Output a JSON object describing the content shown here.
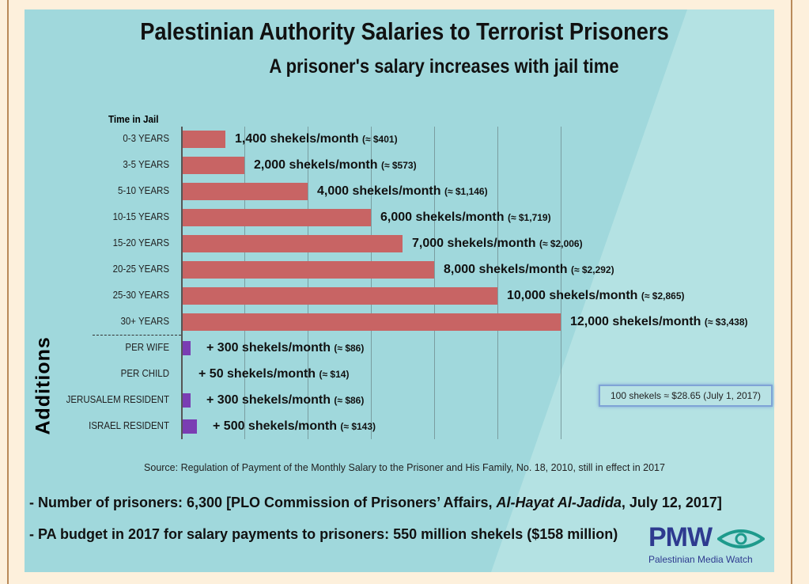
{
  "chart_data": {
    "type": "bar",
    "title": "Palestinian Authority Salaries to Terrorist Prisoners",
    "subtitle": "A prisoner's salary increases with jail time",
    "ylabel": "Time in Jail",
    "additions_label": "Additions",
    "xlim": [
      0,
      12000
    ],
    "grid_step": 2000,
    "categories": [
      "0-3 YEARS",
      "3-5 YEARS",
      "5-10 YEARS",
      "10-15 YEARS",
      "15-20 YEARS",
      "20-25 YEARS",
      "25-30 YEARS",
      "30+ YEARS",
      "PER WIFE",
      "PER CHILD",
      "JERUSALEM RESIDENT",
      "ISRAEL RESIDENT"
    ],
    "values": [
      1400,
      2000,
      4000,
      6000,
      7000,
      8000,
      10000,
      12000,
      300,
      50,
      300,
      500
    ],
    "labels": [
      "1,400 shekels/month",
      "2,000 shekels/month",
      "4,000 shekels/month",
      "6,000 shekels/month",
      "7,000 shekels/month",
      "8,000 shekels/month",
      "10,000 shekels/month",
      "12,000 shekels/month",
      "+ 300 shekels/month",
      "+ 50 shekels/month",
      "+ 300 shekels/month",
      "+ 500 shekels/month"
    ],
    "usd": [
      "(≈ $401)",
      "(≈ $573)",
      "(≈ $1,146)",
      "(≈ $1,719)",
      "(≈ $2,006)",
      "(≈ $2,292)",
      "(≈ $2,865)",
      "(≈ $3,438)",
      "(≈ $86)",
      "(≈ $14)",
      "(≈ $86)",
      "(≈ $143)"
    ],
    "colors": {
      "salary": "#c86464",
      "addition": "#7a3db3"
    }
  },
  "conversion": "100 shekels ≈ $28.65 (July 1, 2017)",
  "source": "Source: Regulation of Payment of the Monthly Salary to the Prisoner and His Family, No. 18, 2010, still in effect in 2017",
  "note1_a": "- Number of prisoners: 6,300 [PLO Commission of Prisoners’ Affairs, ",
  "note1_b": "Al-Hayat Al-Jadida",
  "note1_c": ", July 12, 2017]",
  "note2": "- PA budget in 2017 for salary payments to prisoners: 550 million shekels ($158 million)",
  "logo": {
    "abbr": "PMW",
    "name": "Palestinian Media Watch"
  }
}
